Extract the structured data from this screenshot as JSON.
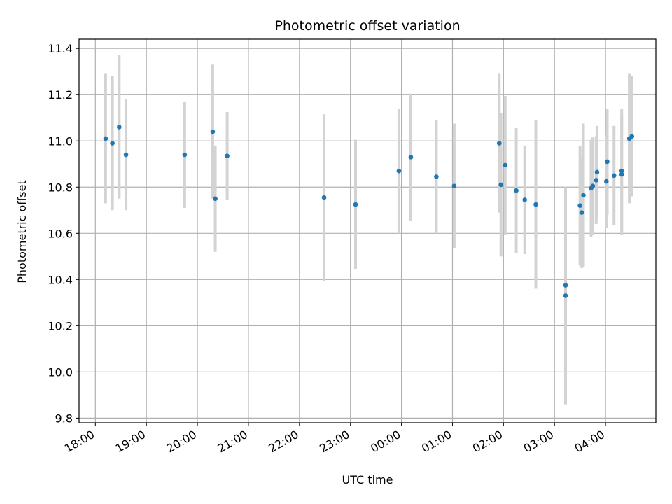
{
  "chart_data": {
    "type": "scatter",
    "title": "Photometric offset variation",
    "xlabel": "UTC time",
    "ylabel": "Photometric offset",
    "grid": true,
    "x_axis": {
      "kind": "time",
      "min": "18:00",
      "max": "04:40",
      "day_rollover_after": "23:59",
      "tick_labels": [
        "18:00",
        "19:00",
        "20:00",
        "21:00",
        "22:00",
        "23:00",
        "00:00",
        "01:00",
        "02:00",
        "03:00",
        "04:00"
      ]
    },
    "y_axis": {
      "min": 9.78,
      "max": 11.44,
      "ticks": [
        9.8,
        10.0,
        10.2,
        10.4,
        10.6,
        10.8,
        11.0,
        11.2,
        11.4
      ],
      "tick_labels": [
        "9.8",
        "10.0",
        "10.2",
        "10.4",
        "10.6",
        "10.8",
        "11.0",
        "11.2",
        "11.4"
      ]
    },
    "colors": {
      "marker": "#1f77b4",
      "errorbar": "#d3d3d3",
      "grid": "#b0b0b0"
    },
    "points": [
      {
        "t": "18:12",
        "y": 11.01,
        "err": 0.28
      },
      {
        "t": "18:20",
        "y": 10.99,
        "err": 0.29
      },
      {
        "t": "18:28",
        "y": 11.06,
        "err": 0.31
      },
      {
        "t": "18:36",
        "y": 10.94,
        "err": 0.24
      },
      {
        "t": "19:45",
        "y": 10.94,
        "err": 0.23
      },
      {
        "t": "20:18",
        "y": 11.04,
        "err": 0.29
      },
      {
        "t": "20:21",
        "y": 10.75,
        "err": 0.23
      },
      {
        "t": "20:35",
        "y": 10.935,
        "err": 0.19
      },
      {
        "t": "22:29",
        "y": 10.755,
        "err": 0.36
      },
      {
        "t": "23:06",
        "y": 10.725,
        "err": 0.28
      },
      {
        "t": "23:57",
        "y": 10.87,
        "err": 0.27
      },
      {
        "t": "00:11",
        "y": 10.93,
        "err": 0.275
      },
      {
        "t": "00:41",
        "y": 10.845,
        "err": 0.245
      },
      {
        "t": "01:02",
        "y": 10.805,
        "err": 0.27
      },
      {
        "t": "01:55",
        "y": 10.99,
        "err": 0.3
      },
      {
        "t": "01:57",
        "y": 10.81,
        "err": 0.31
      },
      {
        "t": "02:02",
        "y": 10.895,
        "err": 0.3
      },
      {
        "t": "02:15",
        "y": 10.785,
        "err": 0.27
      },
      {
        "t": "02:25",
        "y": 10.745,
        "err": 0.235
      },
      {
        "t": "02:38",
        "y": 10.725,
        "err": 0.365
      },
      {
        "t": "03:13",
        "y": 10.375,
        "err": 0.42
      },
      {
        "t": "03:13",
        "y": 10.33,
        "err": 0.47
      },
      {
        "t": "03:30",
        "y": 10.72,
        "err": 0.26
      },
      {
        "t": "03:32",
        "y": 10.69,
        "err": 0.24
      },
      {
        "t": "03:34",
        "y": 10.765,
        "err": 0.31
      },
      {
        "t": "03:43",
        "y": 10.795,
        "err": 0.21
      },
      {
        "t": "03:45",
        "y": 10.805,
        "err": 0.21
      },
      {
        "t": "03:49",
        "y": 10.83,
        "err": 0.19
      },
      {
        "t": "03:50",
        "y": 10.865,
        "err": 0.2
      },
      {
        "t": "04:01",
        "y": 10.825,
        "err": 0.2
      },
      {
        "t": "04:02",
        "y": 10.91,
        "err": 0.23
      },
      {
        "t": "04:10",
        "y": 10.85,
        "err": 0.215
      },
      {
        "t": "04:19",
        "y": 10.87,
        "err": 0.27
      },
      {
        "t": "04:19",
        "y": 10.855,
        "err": 0.26
      },
      {
        "t": "04:28",
        "y": 11.01,
        "err": 0.28
      },
      {
        "t": "04:31",
        "y": 11.02,
        "err": 0.26
      }
    ]
  }
}
